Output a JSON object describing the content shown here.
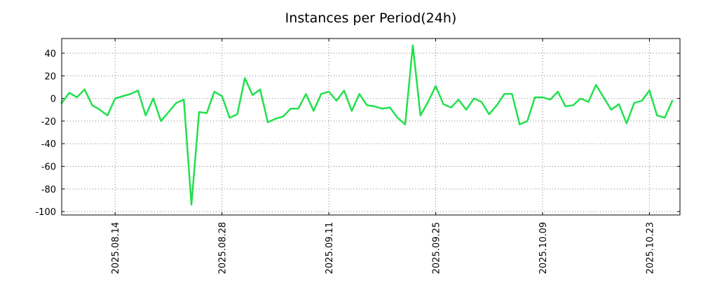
{
  "chart_data": {
    "type": "line",
    "title": "Instances per Period(24h)",
    "xlabel": "",
    "ylabel": "",
    "grid": true,
    "legend": "none",
    "x_range": [
      "2025-08-07",
      "2025-10-27"
    ],
    "ylim": [
      -103,
      53
    ],
    "y_ticks": [
      40,
      20,
      0,
      -20,
      -40,
      -60,
      -80,
      -100
    ],
    "x_ticks": [
      "2025.08.14",
      "2025.08.28",
      "2025.09.11",
      "2025.09.25",
      "2025.10.09",
      "2025.10.23"
    ],
    "x_tick_dates": [
      "2025-08-14",
      "2025-08-28",
      "2025-09-11",
      "2025-09-25",
      "2025-10-09",
      "2025-10-23"
    ],
    "series": [
      {
        "color": "#22e04e",
        "points": [
          [
            "2025-08-07",
            -4
          ],
          [
            "2025-08-08",
            5
          ],
          [
            "2025-08-09",
            1
          ],
          [
            "2025-08-10",
            8
          ],
          [
            "2025-08-11",
            -6
          ],
          [
            "2025-08-12",
            -10
          ],
          [
            "2025-08-13",
            -15
          ],
          [
            "2025-08-14",
            0
          ],
          [
            "2025-08-15",
            2
          ],
          [
            "2025-08-16",
            4
          ],
          [
            "2025-08-17",
            7
          ],
          [
            "2025-08-18",
            -15
          ],
          [
            "2025-08-19",
            0
          ],
          [
            "2025-08-20",
            -20
          ],
          [
            "2025-08-21",
            -12
          ],
          [
            "2025-08-22",
            -4
          ],
          [
            "2025-08-23",
            -1
          ],
          [
            "2025-08-24",
            -94
          ],
          [
            "2025-08-25",
            -12
          ],
          [
            "2025-08-26",
            -13
          ],
          [
            "2025-08-27",
            6
          ],
          [
            "2025-08-28",
            2
          ],
          [
            "2025-08-29",
            -17
          ],
          [
            "2025-08-30",
            -14
          ],
          [
            "2025-08-31",
            18
          ],
          [
            "2025-09-01",
            3
          ],
          [
            "2025-09-02",
            8
          ],
          [
            "2025-09-03",
            -21
          ],
          [
            "2025-09-04",
            -18
          ],
          [
            "2025-09-05",
            -16
          ],
          [
            "2025-09-06",
            -9
          ],
          [
            "2025-09-07",
            -9
          ],
          [
            "2025-09-08",
            4
          ],
          [
            "2025-09-09",
            -11
          ],
          [
            "2025-09-10",
            4
          ],
          [
            "2025-09-11",
            6
          ],
          [
            "2025-09-12",
            -2
          ],
          [
            "2025-09-13",
            7
          ],
          [
            "2025-09-14",
            -11
          ],
          [
            "2025-09-15",
            4
          ],
          [
            "2025-09-16",
            -6
          ],
          [
            "2025-09-17",
            -7
          ],
          [
            "2025-09-18",
            -9
          ],
          [
            "2025-09-19",
            -8
          ],
          [
            "2025-09-20",
            -17
          ],
          [
            "2025-09-21",
            -23
          ],
          [
            "2025-09-22",
            47
          ],
          [
            "2025-09-23",
            -15
          ],
          [
            "2025-09-24",
            -3
          ],
          [
            "2025-09-25",
            11
          ],
          [
            "2025-09-26",
            -5
          ],
          [
            "2025-09-27",
            -8
          ],
          [
            "2025-09-28",
            -1
          ],
          [
            "2025-09-29",
            -10
          ],
          [
            "2025-09-30",
            0
          ],
          [
            "2025-10-01",
            -3
          ],
          [
            "2025-10-02",
            -14
          ],
          [
            "2025-10-03",
            -6
          ],
          [
            "2025-10-04",
            4
          ],
          [
            "2025-10-05",
            4
          ],
          [
            "2025-10-06",
            -23
          ],
          [
            "2025-10-07",
            -20
          ],
          [
            "2025-10-08",
            1
          ],
          [
            "2025-10-09",
            1
          ],
          [
            "2025-10-10",
            -1
          ],
          [
            "2025-10-11",
            6
          ],
          [
            "2025-10-12",
            -7
          ],
          [
            "2025-10-13",
            -6
          ],
          [
            "2025-10-14",
            0
          ],
          [
            "2025-10-15",
            -3
          ],
          [
            "2025-10-16",
            12
          ],
          [
            "2025-10-17",
            1
          ],
          [
            "2025-10-18",
            -10
          ],
          [
            "2025-10-19",
            -5
          ],
          [
            "2025-10-20",
            -22
          ],
          [
            "2025-10-21",
            -4
          ],
          [
            "2025-10-22",
            -2
          ],
          [
            "2025-10-23",
            7
          ],
          [
            "2025-10-24",
            -15
          ],
          [
            "2025-10-25",
            -17
          ],
          [
            "2025-10-26",
            -2
          ]
        ]
      }
    ]
  }
}
